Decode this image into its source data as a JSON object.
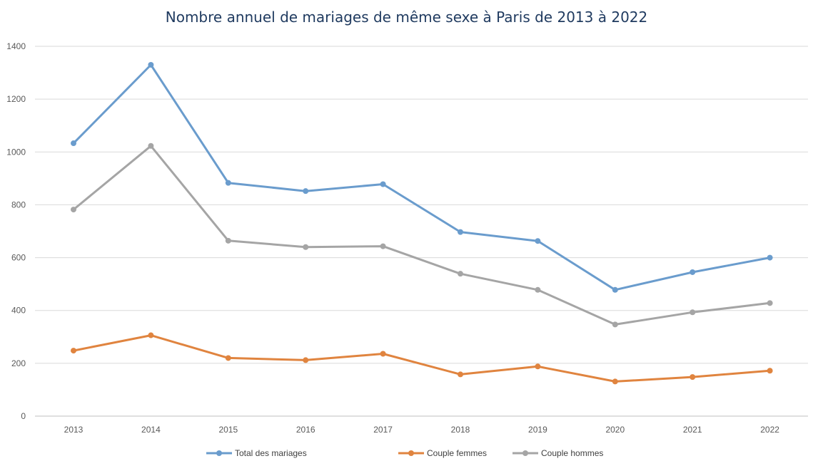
{
  "chart_data": {
    "type": "line",
    "title": "Nombre annuel de mariages de même sexe à Paris de 2013 à 2022",
    "xlabel": "",
    "ylabel": "",
    "x": [
      "2013",
      "2014",
      "2015",
      "2016",
      "2017",
      "2018",
      "2019",
      "2020",
      "2021",
      "2022"
    ],
    "ylim": [
      0,
      1400
    ],
    "yticks": [
      "0",
      "200",
      "400",
      "600",
      "800",
      "1000",
      "1200",
      "1400"
    ],
    "grid": true,
    "legend_position": "bottom",
    "series": [
      {
        "name": "Total  des mariages",
        "color": "#6a9ccd",
        "values": [
          1033,
          1330,
          883,
          852,
          878,
          697,
          663,
          478,
          545,
          600
        ]
      },
      {
        "name": "Couple femmes",
        "color": "#e0843f",
        "values": [
          248,
          306,
          220,
          212,
          236,
          158,
          188,
          131,
          148,
          172
        ]
      },
      {
        "name": "Couple hommes",
        "color": "#a5a5a5",
        "values": [
          782,
          1023,
          664,
          640,
          643,
          539,
          478,
          347,
          393,
          428
        ]
      }
    ]
  }
}
